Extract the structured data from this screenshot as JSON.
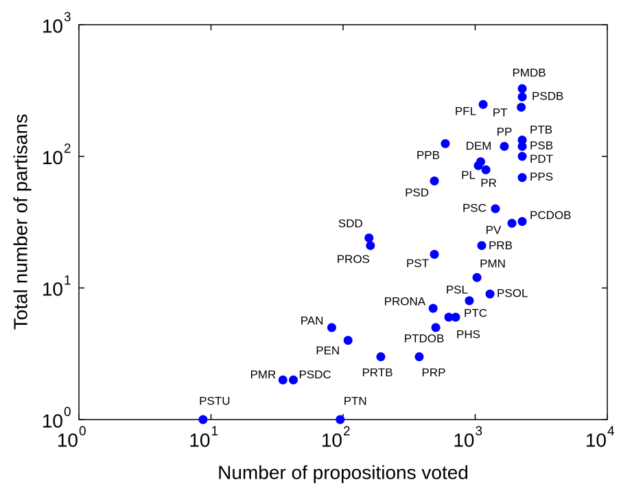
{
  "chart_data": {
    "type": "scatter",
    "x_label": "Number of propositions voted",
    "y_label": "Total number of partisans",
    "xscale": "log",
    "yscale": "log",
    "xlim": [
      1,
      10000
    ],
    "ylim": [
      1,
      1000
    ],
    "xticks": [
      {
        "value": 1,
        "label": "10",
        "exponent": "0"
      },
      {
        "value": 10,
        "label": "10",
        "exponent": "1"
      },
      {
        "value": 100,
        "label": "10",
        "exponent": "2"
      },
      {
        "value": 1000,
        "label": "10",
        "exponent": "3"
      },
      {
        "value": 10000,
        "label": "10",
        "exponent": "4"
      }
    ],
    "yticks": [
      {
        "value": 1,
        "label": "10",
        "exponent": "0"
      },
      {
        "value": 10,
        "label": "10",
        "exponent": "1"
      },
      {
        "value": 100,
        "label": "10",
        "exponent": "2"
      },
      {
        "value": 1000,
        "label": "10",
        "exponent": "3"
      }
    ],
    "grid": false,
    "series": [
      {
        "color": "#0000ff",
        "labels": [
          "PSTU",
          "PTN",
          "PMR",
          "PSDC",
          "PAN",
          "PEN",
          "PRTB",
          "PRP",
          "PTDOB",
          "PHS",
          "PTC",
          "PRONA",
          "PSL",
          "PSOL",
          "PMN",
          "PST",
          "PRB",
          "SDD",
          "PROS",
          "PV",
          "PCDOB",
          "PSC",
          "PSD",
          "PPS",
          "PL",
          "PR",
          "DEM",
          "PDT",
          "PPB",
          "PP",
          "PSB",
          "PTB",
          "PFL",
          "PT",
          "PSDB",
          "PMDB"
        ],
        "x": [
          8.7,
          95,
          35,
          42,
          82,
          109,
          193,
          377,
          503,
          631,
          711,
          480,
          903,
          1294,
          1031,
          491,
          1120,
          157,
          161,
          1897,
          2270,
          1422,
          491,
          2270,
          1055,
          1205,
          1100,
          2270,
          594,
          1662,
          2270,
          2270,
          1148,
          2230,
          2270,
          2270
        ],
        "values": [
          1,
          1,
          2,
          2,
          5,
          4,
          3,
          3,
          5,
          6,
          6,
          7,
          8,
          9,
          12,
          18,
          21,
          24,
          21,
          31,
          32,
          40,
          65,
          69,
          85,
          79,
          91,
          100,
          125,
          119,
          119,
          133,
          248,
          236,
          283,
          327
        ]
      }
    ]
  }
}
